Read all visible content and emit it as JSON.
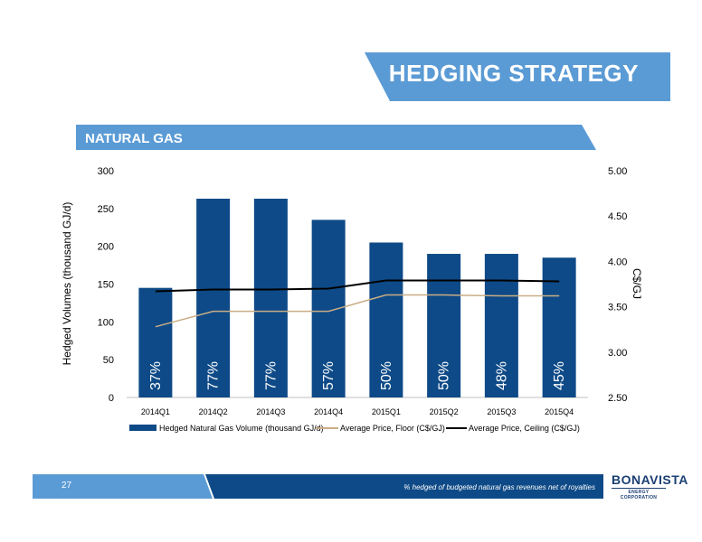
{
  "header": {
    "title": "HEDGING STRATEGY",
    "section": "NATURAL GAS"
  },
  "footer": {
    "page_number": "27",
    "note": "% hedged of budgeted natural gas revenues net of royalties",
    "logo_main": "BONAVISTA",
    "logo_sub": "ENERGY CORPORATION"
  },
  "colors": {
    "bar": "#0e4a87",
    "floor": "#c9ad86",
    "ceiling": "#000000",
    "banner_light": "#5b9bd5",
    "banner_dark": "#0e4a87"
  },
  "chart_data": {
    "type": "bar",
    "categories": [
      "2014Q1",
      "2014Q2",
      "2014Q3",
      "2014Q4",
      "2015Q1",
      "2015Q2",
      "2015Q3",
      "2015Q4"
    ],
    "ylabel": "Hedged Volumes (thousand GJ/d)",
    "y2label": "C$/GJ",
    "ylim": [
      0,
      300
    ],
    "y2lim": [
      2.5,
      5.0
    ],
    "yticks": [
      "0",
      "50",
      "100",
      "150",
      "200",
      "250",
      "300"
    ],
    "y2ticks": [
      "2.50",
      "3.00",
      "3.50",
      "4.00",
      "4.50",
      "5.00"
    ],
    "bar_labels": [
      "37%",
      "77%",
      "77%",
      "57%",
      "50%",
      "50%",
      "48%",
      "45%"
    ],
    "series": [
      {
        "name": "Hedged Natural Gas Volume (thousand GJ/d)",
        "type": "bar",
        "axis": "left",
        "values": [
          145,
          263,
          263,
          235,
          205,
          190,
          190,
          185
        ]
      },
      {
        "name": "Average Price, Floor (C$/GJ)",
        "type": "line",
        "axis": "right",
        "values": [
          3.28,
          3.45,
          3.45,
          3.45,
          3.63,
          3.63,
          3.62,
          3.62
        ]
      },
      {
        "name": "Average Price, Ceiling (C$/GJ)",
        "type": "line",
        "axis": "right",
        "values": [
          3.67,
          3.69,
          3.69,
          3.7,
          3.79,
          3.79,
          3.79,
          3.78
        ]
      }
    ],
    "grid": false,
    "legend_position": "bottom"
  }
}
